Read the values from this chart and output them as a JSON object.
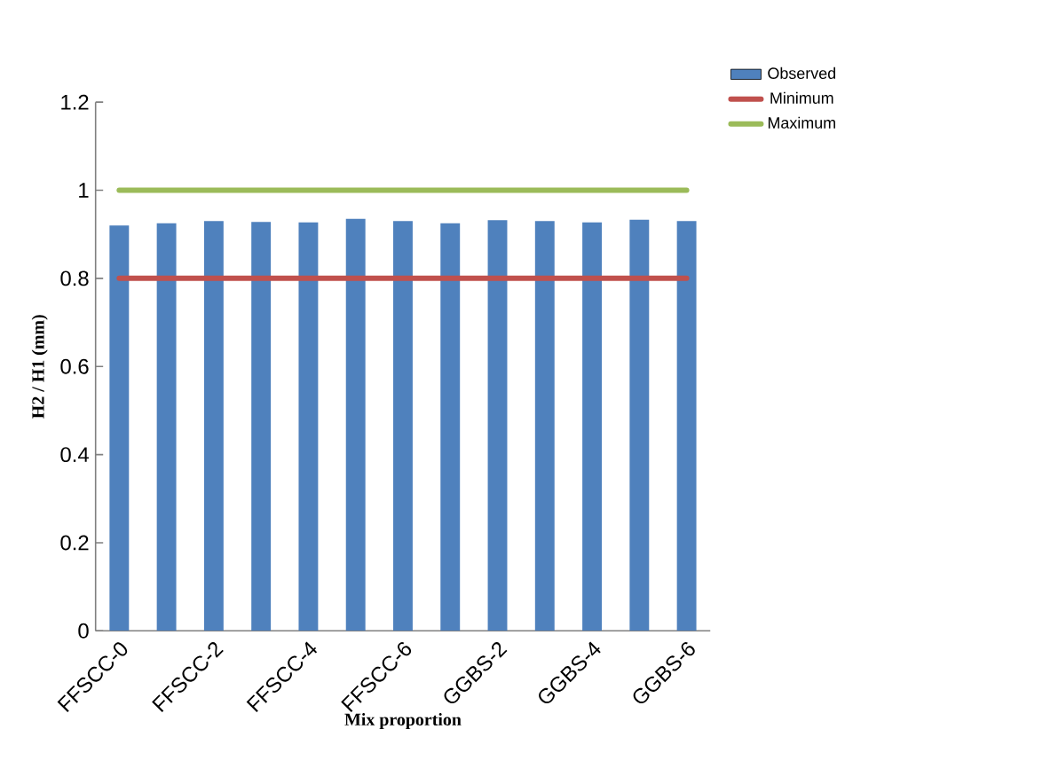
{
  "chart_data": {
    "type": "bar",
    "xlabel": "Mix proportion",
    "ylabel": "H2 / H1 (mm)",
    "categories": [
      "FFSCC-0",
      null,
      "FFSCC-2",
      null,
      "FFSCC-4",
      null,
      "FFSCC-6",
      null,
      "GGBS-2",
      null,
      "GGBS-4",
      null,
      "GGBS-6"
    ],
    "series": [
      {
        "name": "Observed",
        "color": "#4f81bd",
        "values": [
          0.92,
          0.925,
          0.93,
          0.928,
          0.927,
          0.935,
          0.93,
          0.925,
          0.932,
          0.93,
          0.927,
          0.933,
          0.93
        ]
      },
      {
        "name": "Minimum",
        "type": "line",
        "color": "#c0504d",
        "values": [
          0.8,
          0.8,
          0.8,
          0.8,
          0.8,
          0.8,
          0.8,
          0.8,
          0.8,
          0.8,
          0.8,
          0.8,
          0.8
        ]
      },
      {
        "name": "Maximum",
        "type": "line",
        "color": "#9bbb59",
        "values": [
          1,
          1,
          1,
          1,
          1,
          1,
          1,
          1,
          1,
          1,
          1,
          1,
          1
        ]
      }
    ],
    "ylim": [
      0,
      1.2
    ],
    "yticks": [
      0,
      0.2,
      0.4,
      0.6,
      0.8,
      1,
      1.2
    ],
    "legend": "top right",
    "marker": "none"
  }
}
